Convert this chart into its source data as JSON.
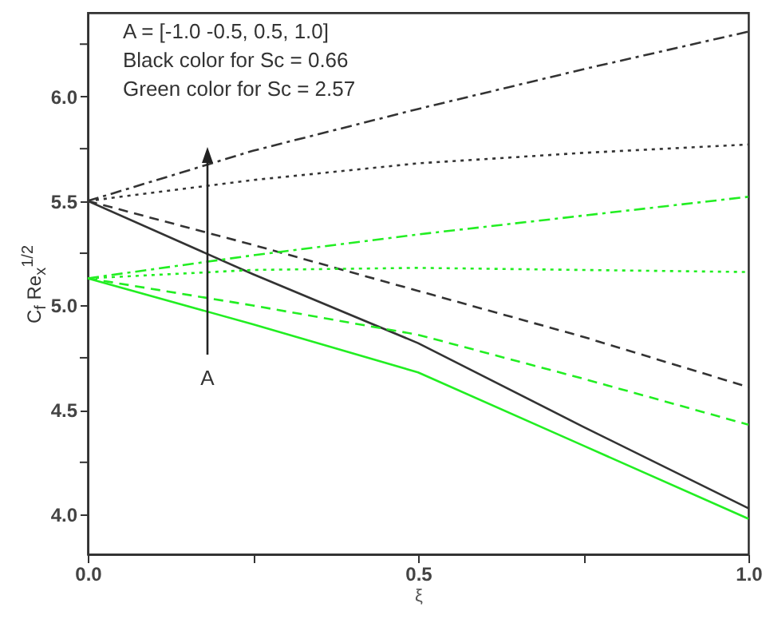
{
  "chart_data": {
    "type": "line",
    "xlabel": "ξ",
    "ylabel": "C$_{f}$ Re$_{x}$$^{1/2}$",
    "x": [
      0,
      0.25,
      0.5,
      0.75,
      1.0
    ],
    "series": [
      {
        "color": "#333333",
        "line_style": "dashdot",
        "values": [
          5.5,
          5.74,
          5.94,
          6.13,
          6.31
        ]
      },
      {
        "color": "#333333",
        "line_style": "dotted",
        "values": [
          5.5,
          5.6,
          5.68,
          5.73,
          5.77
        ]
      },
      {
        "color": "#333333",
        "line_style": "dashed",
        "values": [
          5.5,
          5.29,
          5.07,
          4.85,
          4.61
        ]
      },
      {
        "color": "#333333",
        "line_style": "solid",
        "values": [
          5.5,
          5.15,
          4.82,
          4.42,
          4.03
        ]
      },
      {
        "color": "#22ee22",
        "line_style": "dashdot",
        "values": [
          5.13,
          5.24,
          5.34,
          5.43,
          5.52
        ]
      },
      {
        "color": "#22ee22",
        "line_style": "dotted",
        "values": [
          5.13,
          5.17,
          5.18,
          5.17,
          5.16
        ]
      },
      {
        "color": "#22ee22",
        "line_style": "dashed",
        "values": [
          5.13,
          5.0,
          4.86,
          4.65,
          4.43
        ]
      },
      {
        "color": "#22ee22",
        "line_style": "solid",
        "values": [
          5.13,
          4.91,
          4.68,
          4.33,
          3.98
        ]
      }
    ],
    "xlim": [
      0,
      1
    ],
    "xticks": [
      {
        "value": 0,
        "label": "0.0"
      },
      {
        "value": 0.25,
        "label": null
      },
      {
        "value": 0.5,
        "label": "0.5"
      },
      {
        "value": 0.75,
        "label": null
      },
      {
        "value": 1,
        "label": "1.0"
      }
    ],
    "ylim": [
      3.81,
      6.4
    ],
    "yticks": [
      {
        "value": 4,
        "label": "4.0"
      },
      {
        "value": 4.25,
        "label": null
      },
      {
        "value": 4.5,
        "label": "4.5"
      },
      {
        "value": 4.75,
        "label": null
      },
      {
        "value": 5,
        "label": "5.0"
      },
      {
        "value": 5.25,
        "label": null
      },
      {
        "value": 5.5,
        "label": "5.5"
      },
      {
        "value": 5.75,
        "label": null
      },
      {
        "value": 6,
        "label": "6.0"
      },
      {
        "value": 6.25,
        "label": null
      }
    ],
    "grid": false,
    "marker": "none",
    "annotations": [
      "A = [-1.0 -0.5, 0.5, 1.0]",
      "Black color for Sc = 0.66",
      "Green color for Sc = 2.57",
      "A"
    ]
  }
}
